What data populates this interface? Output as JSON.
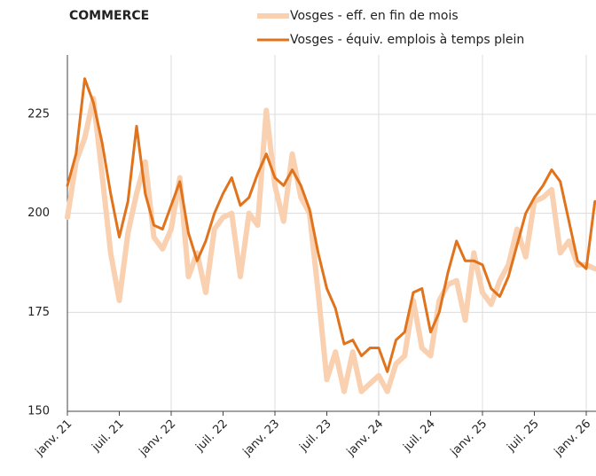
{
  "chart_data": {
    "type": "line",
    "title": "COMMERCE",
    "categories": [
      "janv. 21",
      null,
      null,
      null,
      null,
      null,
      "juil. 21",
      null,
      null,
      null,
      null,
      null,
      "janv. 22",
      null,
      null,
      null,
      null,
      null,
      "juil. 22",
      null,
      null,
      null,
      null,
      null,
      "janv. 23",
      null,
      null,
      null,
      null,
      null,
      "juil. 23",
      null,
      null,
      null,
      null,
      null,
      "janv. 24",
      null,
      null,
      null,
      null,
      null,
      "juil. 24",
      null,
      null,
      null,
      null,
      null,
      "janv. 25",
      null,
      null,
      null,
      null,
      null,
      "juil. 25",
      null,
      null,
      null,
      null,
      null,
      "janv. 26",
      null
    ],
    "series": [
      {
        "name": "Vosges - eff. en fin de mois",
        "color": "#f9d0b0",
        "values": [
          199,
          213,
          219,
          229,
          210,
          190,
          178,
          195,
          205,
          213,
          194,
          191,
          196,
          209,
          184,
          190,
          180,
          196,
          199,
          200,
          184,
          200,
          197,
          226,
          207,
          198,
          215,
          204,
          200,
          180,
          158,
          165,
          155,
          165,
          155,
          157,
          159,
          155,
          162,
          164,
          178,
          166,
          164,
          178,
          182,
          183,
          173,
          190,
          180,
          177,
          183,
          187,
          196,
          189,
          203,
          204,
          206,
          190,
          193,
          187,
          187,
          186
        ]
      },
      {
        "name": "Vosges - équiv. emplois à temps plein",
        "color": "#e0731b",
        "values": [
          207,
          215,
          234,
          228,
          218,
          205,
          194,
          203,
          222,
          205,
          197,
          196,
          202,
          208,
          195,
          188,
          193,
          200,
          205,
          209,
          202,
          204,
          210,
          215,
          209,
          207,
          211,
          207,
          201,
          190,
          181,
          176,
          167,
          168,
          164,
          166,
          166,
          160,
          168,
          170,
          180,
          181,
          170,
          175,
          185,
          193,
          188,
          188,
          187,
          181,
          179,
          184,
          192,
          200,
          204,
          207,
          211,
          208,
          198,
          188,
          186,
          203
        ]
      }
    ],
    "ylim": [
      150,
      240
    ],
    "yticks": [
      150,
      175,
      200,
      225
    ],
    "grid": true
  }
}
